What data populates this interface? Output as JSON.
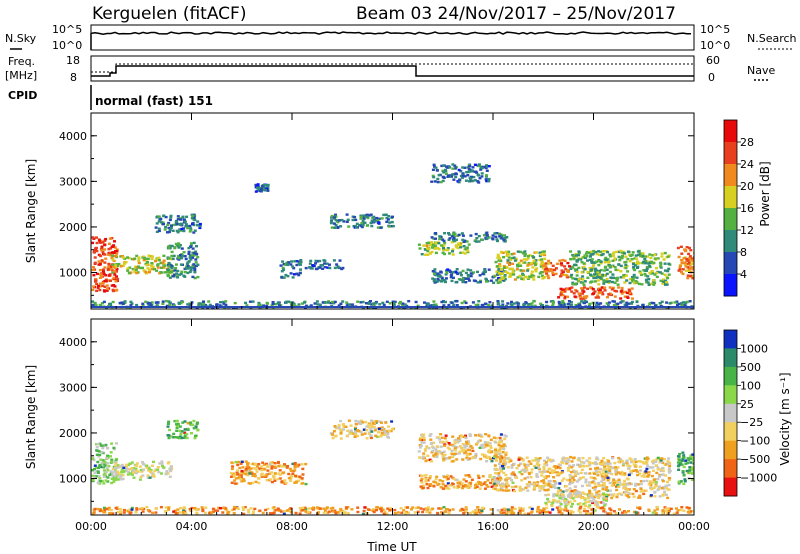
{
  "header": {
    "title": "Kerguelen (fitACF)",
    "subtitle": "Beam 03  24/Nov/2017 – 25/Nov/2017"
  },
  "aux": {
    "nsky_label": "N.Sky",
    "nsky_ticks": [
      "10^5",
      "10^0"
    ],
    "nsearch_label": "N.Search",
    "nsearch_ticks": [
      "10^5",
      "10^0"
    ],
    "freq_label_1": "Freq.",
    "freq_label_2": "[MHz]",
    "freq_ticks": [
      "18",
      "8"
    ],
    "nave_label": "Nave",
    "nave_ticks": [
      "60",
      "0"
    ],
    "cpid_label": "CPID",
    "cpid_value": "normal (fast) 151"
  },
  "chart_data": [
    {
      "type": "heatmap",
      "name": "power",
      "ylabel": "Slant Range [km]",
      "yticks": [
        "1000",
        "2000",
        "3000",
        "4000"
      ],
      "yrange": [
        200,
        4500
      ],
      "xrange_hours": [
        0,
        24
      ],
      "xticks": [
        "00:00",
        "04:00",
        "08:00",
        "12:00",
        "16:00",
        "20:00",
        "00:00"
      ],
      "colorbar_label": "Power [dB]",
      "colorbar_ticks": [
        "4",
        "8",
        "12",
        "16",
        "20",
        "24",
        "28"
      ],
      "colorbar_colors": [
        "#0a14ff",
        "#2548b4",
        "#2f8a7a",
        "#54b040",
        "#d8d020",
        "#f08a1e",
        "#e8401e",
        "#e80a0a"
      ],
      "regions": [
        {
          "t": [
            0.0,
            1.0
          ],
          "r": [
            600,
            1800
          ],
          "level": 26
        },
        {
          "t": [
            0.8,
            3.2
          ],
          "r": [
            1000,
            1400
          ],
          "level": 17
        },
        {
          "t": [
            3.0,
            4.2
          ],
          "r": [
            900,
            1700
          ],
          "level": 10
        },
        {
          "t": [
            2.5,
            4.3
          ],
          "r": [
            1900,
            2300
          ],
          "level": 8
        },
        {
          "t": [
            6.5,
            7.0
          ],
          "r": [
            2800,
            2960
          ],
          "level": 7
        },
        {
          "t": [
            7.5,
            8.3
          ],
          "r": [
            900,
            1300
          ],
          "level": 8
        },
        {
          "t": [
            8.5,
            10.0
          ],
          "r": [
            1100,
            1300
          ],
          "level": 7
        },
        {
          "t": [
            9.5,
            12.0
          ],
          "r": [
            2000,
            2300
          ],
          "level": 8
        },
        {
          "t": [
            13.0,
            15.0
          ],
          "r": [
            1400,
            1700
          ],
          "level": 15
        },
        {
          "t": [
            13.5,
            16.5
          ],
          "r": [
            1700,
            1900
          ],
          "level": 9
        },
        {
          "t": [
            13.5,
            15.8
          ],
          "r": [
            3000,
            3400
          ],
          "level": 8
        },
        {
          "t": [
            13.5,
            16.5
          ],
          "r": [
            800,
            1100
          ],
          "level": 8
        },
        {
          "t": [
            16.0,
            18.0
          ],
          "r": [
            850,
            1500
          ],
          "level": 16
        },
        {
          "t": [
            18.0,
            19.0
          ],
          "r": [
            900,
            1300
          ],
          "level": 24
        },
        {
          "t": [
            18.5,
            21.5
          ],
          "r": [
            450,
            700
          ],
          "level": 25
        },
        {
          "t": [
            19.0,
            23.0
          ],
          "r": [
            750,
            1500
          ],
          "level": 13
        },
        {
          "t": [
            23.3,
            24.0
          ],
          "r": [
            900,
            1600
          ],
          "level": 22
        },
        {
          "t": [
            0.0,
            24.0
          ],
          "r": [
            250,
            400
          ],
          "level": 9
        }
      ]
    },
    {
      "type": "heatmap",
      "name": "velocity",
      "ylabel": "Slant Range [km]",
      "yticks": [
        "1000",
        "2000",
        "3000",
        "4000"
      ],
      "yrange": [
        200,
        4500
      ],
      "xrange_hours": [
        0,
        24
      ],
      "xticks": [
        "00:00",
        "04:00",
        "08:00",
        "12:00",
        "16:00",
        "20:00",
        "00:00"
      ],
      "xlabel": "Time UT",
      "colorbar_label": "Velocity [m s⁻¹]",
      "colorbar_ticks": [
        "1000",
        "500",
        "100",
        "25",
        "−25",
        "−100",
        "−500",
        "−1000"
      ],
      "colorbar_colors": [
        "#1030c0",
        "#2a8a6a",
        "#48b448",
        "#8ad84a",
        "#c8c8c8",
        "#f2d060",
        "#f0a020",
        "#f06418",
        "#e81010"
      ],
      "regions": [
        {
          "t": [
            0.0,
            1.0
          ],
          "r": [
            900,
            1800
          ],
          "level": 3
        },
        {
          "t": [
            0.8,
            3.2
          ],
          "r": [
            1000,
            1400
          ],
          "level": 4
        },
        {
          "t": [
            3.0,
            4.2
          ],
          "r": [
            1900,
            2300
          ],
          "level": 2
        },
        {
          "t": [
            5.5,
            8.5
          ],
          "r": [
            900,
            1400
          ],
          "level": 6
        },
        {
          "t": [
            9.5,
            12.0
          ],
          "r": [
            1900,
            2300
          ],
          "level": 5
        },
        {
          "t": [
            13.0,
            16.5
          ],
          "r": [
            1400,
            2000
          ],
          "level": 5
        },
        {
          "t": [
            13.0,
            16.5
          ],
          "r": [
            800,
            1100
          ],
          "level": 6
        },
        {
          "t": [
            16.0,
            18.5
          ],
          "r": [
            750,
            1500
          ],
          "level": 5
        },
        {
          "t": [
            18.5,
            23.0
          ],
          "r": [
            600,
            1500
          ],
          "level": 5
        },
        {
          "t": [
            18.0,
            20.5
          ],
          "r": [
            400,
            700
          ],
          "level": 4
        },
        {
          "t": [
            23.3,
            24.0
          ],
          "r": [
            900,
            1600
          ],
          "level": 2
        },
        {
          "t": [
            0.0,
            24.0
          ],
          "r": [
            250,
            400
          ],
          "level": 6
        }
      ]
    }
  ]
}
